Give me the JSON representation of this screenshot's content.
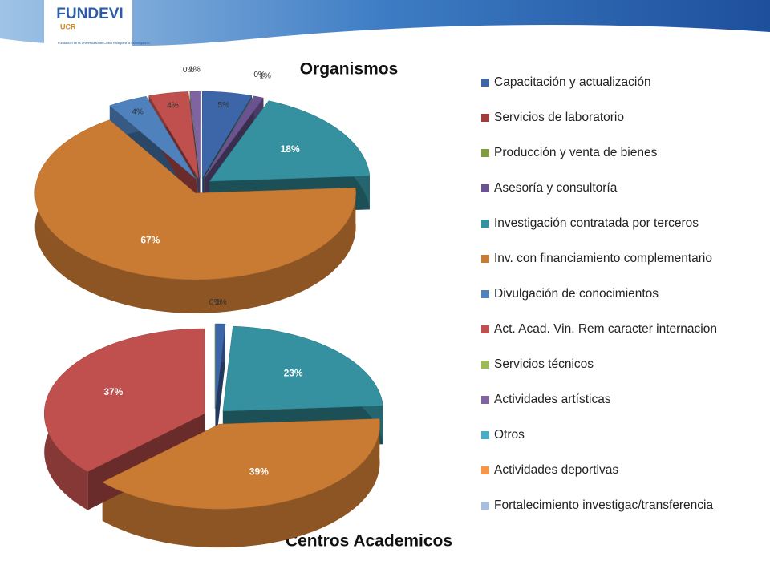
{
  "header": {
    "logo": "FUNDEVI",
    "logo_side": "UCR",
    "logo_caption": "Fundación de la Universidad de Costa Rica para la Investigación"
  },
  "chart_data": [
    {
      "type": "pie3d",
      "title": "Organismos",
      "categories": [
        "Capacitación y actualización",
        "Servicios de laboratorio",
        "Producción y venta de bienes",
        "Asesoría y consultoría",
        "Investigación contratada por terceros",
        "Inv. con financiamiento complementario",
        "Divulgación de conocimientos",
        "Act. Acad. Vin. Rem caracter internacion",
        "Servicios técnicos",
        "Actividades artísticas",
        "Otros",
        "Actividades deportivas",
        "Fortalecimiento investigac/transferencia"
      ],
      "colors": [
        "#3d66a8",
        "#a23c38",
        "#7f9c3e",
        "#6a5390",
        "#35909f",
        "#c97a33",
        "#4f81bd",
        "#c0504d",
        "#9bbb59",
        "#8064a2",
        "#4bacc6",
        "#f79646",
        "#a7bfdf"
      ],
      "values": [
        5,
        null,
        0,
        1,
        18,
        67,
        4,
        4,
        0,
        1,
        null,
        null,
        null
      ],
      "value_labels": [
        "5%",
        null,
        "0%",
        "1%",
        "18%",
        "67%",
        "4%",
        "4%",
        "0%",
        "1%",
        null,
        null,
        null
      ]
    },
    {
      "type": "pie3d",
      "title": "Centros Academicos",
      "values": [
        1,
        null,
        null,
        null,
        23,
        39,
        null,
        37,
        0,
        null,
        null,
        null,
        null
      ],
      "value_labels": [
        "1%",
        null,
        null,
        null,
        "23%",
        "39%",
        null,
        "37%",
        "0%",
        null,
        null,
        null,
        null
      ]
    }
  ]
}
